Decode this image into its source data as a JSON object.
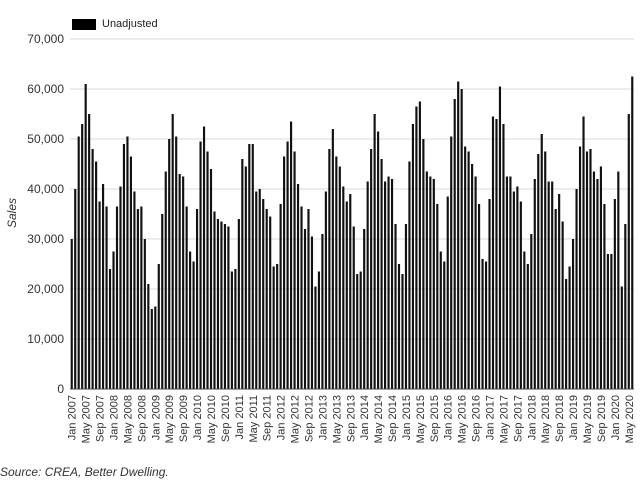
{
  "legend": {
    "label": "Unadjusted"
  },
  "source": "Source: CREA, Better Dwelling.",
  "chart_data": {
    "type": "bar",
    "ylabel": "Sales",
    "ylim": [
      0,
      70000
    ],
    "yticks": [
      "0",
      "10,000",
      "20,000",
      "30,000",
      "40,000",
      "50,000",
      "60,000",
      "70,000"
    ],
    "grid": true,
    "legend_position": "top-left",
    "bar_color": "#111111",
    "x_tick_labels": [
      "Jan 2007",
      "May 2007",
      "Sep 2007",
      "Jan 2008",
      "May 2008",
      "Sep 2008",
      "Jan 2009",
      "May 2009",
      "Sep 2009",
      "Jan 2010",
      "May 2010",
      "Sep 2010",
      "Jan 2011",
      "May 2011",
      "Sep 2011",
      "Jan 2012",
      "May 2012",
      "Sep 2012",
      "Jan 2013",
      "May 2013",
      "Sep 2013",
      "Jan 2014",
      "May 2014",
      "Sep 2014",
      "Jan 2015",
      "May 2015",
      "Sep 2015",
      "Jan 2016",
      "May 2016",
      "Sep 2016",
      "Jan 2017",
      "May 2017",
      "Sep 2017",
      "Jan 2018",
      "May 2018",
      "Sep 2018",
      "Jan 2019",
      "May 2019",
      "Sep 2019",
      "Jan 2020",
      "May 2020"
    ],
    "series": [
      {
        "name": "Unadjusted",
        "values": [
          30000,
          40000,
          50500,
          53000,
          61000,
          55000,
          48000,
          45500,
          37500,
          41000,
          36500,
          24000,
          27500,
          36500,
          40500,
          49000,
          50500,
          46500,
          39500,
          36000,
          36500,
          30000,
          21000,
          16000,
          16500,
          25000,
          35000,
          43500,
          50000,
          55000,
          50500,
          43000,
          42500,
          36500,
          27500,
          25500,
          36000,
          49500,
          52500,
          47500,
          44000,
          35500,
          34000,
          33500,
          33000,
          32500,
          23500,
          24000,
          34000,
          46000,
          44500,
          49000,
          49000,
          39500,
          40000,
          38000,
          36000,
          34500,
          24500,
          25000,
          37000,
          46500,
          49500,
          53500,
          47500,
          41000,
          36500,
          32000,
          36000,
          30500,
          20500,
          23500,
          31000,
          39500,
          48000,
          52000,
          46500,
          44500,
          40500,
          37500,
          39000,
          32500,
          23000,
          23500,
          32000,
          41500,
          48000,
          55000,
          51500,
          46000,
          41500,
          42500,
          42000,
          33000,
          25000,
          23000,
          33000,
          45500,
          53000,
          56500,
          57500,
          50000,
          43500,
          42500,
          42000,
          37000,
          27500,
          25500,
          38500,
          50500,
          58000,
          61500,
          60000,
          48500,
          47500,
          45000,
          42500,
          37000,
          26000,
          25500,
          38000,
          54500,
          54000,
          60500,
          53000,
          42500,
          42500,
          39500,
          40500,
          37500,
          27500,
          25000,
          31000,
          42000,
          47000,
          51000,
          47500,
          41500,
          41500,
          36000,
          39000,
          33500,
          22000,
          24500,
          30000,
          40000,
          48500,
          54500,
          47500,
          48000,
          43500,
          42000,
          44500,
          37000,
          27000,
          27000,
          38000,
          43500,
          20500,
          33000,
          55000,
          62500
        ]
      }
    ]
  }
}
